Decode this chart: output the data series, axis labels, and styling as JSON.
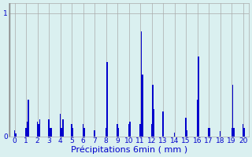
{
  "xlabel": "Précipitations 6min ( mm )",
  "bar_color": "#0000cc",
  "background_color": "#daf0f0",
  "grid_color": "#aaaaaa",
  "ylim": [
    0,
    1.08
  ],
  "yticks": [
    0,
    1
  ],
  "xlim": [
    -0.5,
    20.5
  ],
  "xlabel_fontsize": 8,
  "tick_fontsize": 6.5,
  "tick_color": "#0000cc",
  "axis_label_color": "#0000cc",
  "bar_width": 0.08,
  "xtick_labels": [
    "0",
    "1",
    "2",
    "3",
    "4",
    "5",
    "6",
    "7",
    "8",
    "9",
    "10",
    "11",
    "12",
    "13",
    "14",
    "15",
    "16",
    "17",
    "18",
    "19",
    "20"
  ],
  "xtick_positions": [
    0,
    1,
    2,
    3,
    4,
    5,
    6,
    7,
    8,
    9,
    10,
    11,
    12,
    13,
    14,
    15,
    16,
    17,
    18,
    19,
    20
  ],
  "bars": [
    [
      0.0,
      0.05
    ],
    [
      0.1,
      0.02
    ],
    [
      1.0,
      0.07
    ],
    [
      1.1,
      0.12
    ],
    [
      1.2,
      0.3
    ],
    [
      2.0,
      0.12
    ],
    [
      2.1,
      0.1
    ],
    [
      2.2,
      0.14
    ],
    [
      3.0,
      0.14
    ],
    [
      3.1,
      0.07
    ],
    [
      3.2,
      0.07
    ],
    [
      4.0,
      0.18
    ],
    [
      4.1,
      0.07
    ],
    [
      4.2,
      0.14
    ],
    [
      4.3,
      0.14
    ],
    [
      5.0,
      0.1
    ],
    [
      5.1,
      0.07
    ],
    [
      6.0,
      0.1
    ],
    [
      6.1,
      0.07
    ],
    [
      7.0,
      0.05
    ],
    [
      8.0,
      0.07
    ],
    [
      8.1,
      0.6
    ],
    [
      9.0,
      0.1
    ],
    [
      9.1,
      0.07
    ],
    [
      10.0,
      0.1
    ],
    [
      10.1,
      0.12
    ],
    [
      11.0,
      0.1
    ],
    [
      11.1,
      0.85
    ],
    [
      11.2,
      0.5
    ],
    [
      12.0,
      0.1
    ],
    [
      12.1,
      0.42
    ],
    [
      12.2,
      0.22
    ],
    [
      13.0,
      0.2
    ],
    [
      14.0,
      0.03
    ],
    [
      15.0,
      0.15
    ],
    [
      15.1,
      0.05
    ],
    [
      16.0,
      0.3
    ],
    [
      16.1,
      0.65
    ],
    [
      17.0,
      0.07
    ],
    [
      17.1,
      0.07
    ],
    [
      18.0,
      0.04
    ],
    [
      19.0,
      0.07
    ],
    [
      19.1,
      0.42
    ],
    [
      19.2,
      0.07
    ],
    [
      20.0,
      0.1
    ],
    [
      20.1,
      0.07
    ]
  ],
  "vline_x": -0.42,
  "vline_color": "#888888"
}
